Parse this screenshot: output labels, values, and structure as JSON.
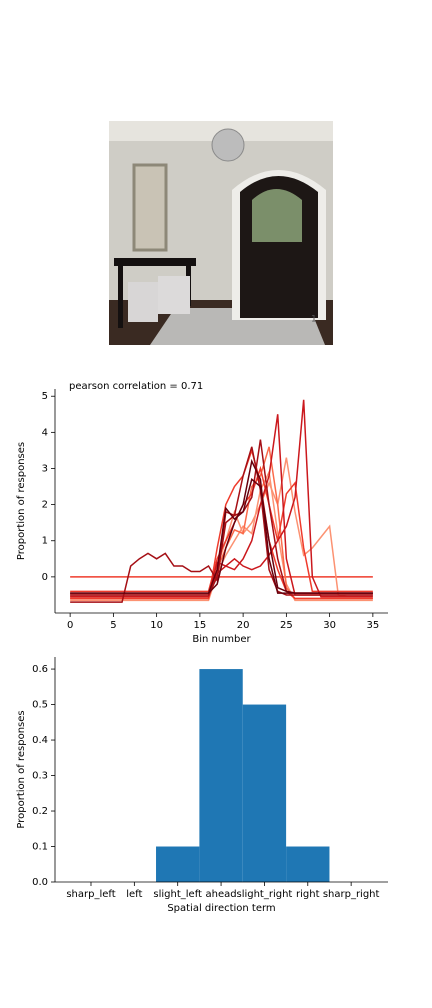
{
  "image_label": "1",
  "chart_data": [
    {
      "type": "line",
      "annotation": "pearson correlation = 0.71",
      "xlabel": "Bin number",
      "ylabel": "Proportion of responses",
      "x": [
        0,
        1,
        2,
        3,
        4,
        5,
        6,
        7,
        8,
        9,
        10,
        11,
        12,
        13,
        14,
        15,
        16,
        17,
        18,
        19,
        20,
        21,
        22,
        23,
        24,
        25,
        26,
        27,
        28,
        29,
        30,
        31,
        32,
        33,
        34,
        35
      ],
      "xlim": [
        -1.75,
        36.75
      ],
      "xticks": [
        0,
        5,
        10,
        15,
        20,
        25,
        30,
        35
      ],
      "ylim": [
        -1,
        5.2
      ],
      "yticks": [
        0,
        1,
        2,
        3,
        4,
        5
      ],
      "series": [
        {
          "color": "#ef3b2c",
          "values": [
            0,
            0,
            0,
            0,
            0,
            0,
            0,
            0,
            0,
            0,
            0,
            0,
            0,
            0,
            0,
            0,
            0,
            0,
            0,
            0,
            0,
            0,
            0,
            0,
            0,
            0,
            0,
            0,
            0,
            0,
            0,
            0,
            0,
            0,
            0,
            0
          ]
        },
        {
          "color": "#fc9272",
          "values": [
            -0.55,
            -0.55,
            -0.55,
            -0.55,
            -0.55,
            -0.55,
            -0.55,
            -0.55,
            -0.55,
            -0.55,
            -0.55,
            -0.55,
            -0.55,
            -0.55,
            -0.55,
            -0.55,
            -0.55,
            0.3,
            1.0,
            1.8,
            1.2,
            1.5,
            2.0,
            2.6,
            2.0,
            3.3,
            1.8,
            0.6,
            0.8,
            1.1,
            1.4,
            -0.5,
            -0.55,
            -0.55,
            -0.55,
            -0.55
          ]
        },
        {
          "color": "#fc9272",
          "values": [
            -0.65,
            -0.65,
            -0.65,
            -0.65,
            -0.65,
            -0.65,
            -0.65,
            -0.65,
            -0.65,
            -0.65,
            -0.65,
            -0.65,
            -0.65,
            -0.65,
            -0.65,
            -0.65,
            -0.65,
            0.1,
            0.6,
            1.0,
            1.4,
            1.2,
            2.4,
            2.9,
            1.2,
            -0.2,
            -0.65,
            -0.65,
            -0.65,
            -0.65,
            -0.65,
            -0.65,
            -0.65,
            -0.65,
            -0.65,
            -0.65
          ]
        },
        {
          "color": "#fb6a4a",
          "values": [
            -0.6,
            -0.6,
            -0.6,
            -0.6,
            -0.6,
            -0.6,
            -0.6,
            -0.6,
            -0.6,
            -0.6,
            -0.6,
            -0.6,
            -0.6,
            -0.6,
            -0.6,
            -0.6,
            -0.6,
            0.2,
            0.8,
            1.3,
            1.2,
            2.5,
            2.8,
            3.6,
            2.0,
            -0.3,
            -0.6,
            -0.6,
            -0.6,
            -0.6,
            -0.6,
            -0.6,
            -0.6,
            -0.6,
            -0.6,
            -0.6
          ]
        },
        {
          "color": "#ef3b2c",
          "values": [
            -0.4,
            -0.4,
            -0.4,
            -0.4,
            -0.4,
            -0.4,
            -0.4,
            -0.4,
            -0.4,
            -0.4,
            -0.4,
            -0.4,
            -0.4,
            -0.4,
            -0.4,
            -0.4,
            -0.4,
            0.5,
            1.0,
            1.5,
            2.0,
            2.3,
            3.0,
            2.0,
            1.0,
            2.3,
            2.6,
            0.8,
            -0.4,
            -0.4,
            -0.4,
            -0.4,
            -0.4,
            -0.4,
            -0.4,
            -0.4
          ]
        },
        {
          "color": "#ef3b2c",
          "values": [
            -0.6,
            -0.6,
            -0.6,
            -0.6,
            -0.6,
            -0.6,
            -0.6,
            -0.6,
            -0.6,
            -0.6,
            -0.6,
            -0.6,
            -0.6,
            -0.6,
            -0.6,
            -0.6,
            -0.6,
            0.8,
            2.0,
            2.5,
            2.8,
            3.5,
            2.6,
            1.0,
            0.2,
            -0.4,
            -0.6,
            -0.6,
            -0.6,
            -0.6,
            -0.6,
            -0.6,
            -0.6,
            -0.6,
            -0.6,
            -0.6
          ]
        },
        {
          "color": "#cb181d",
          "values": [
            -0.5,
            -0.5,
            -0.5,
            -0.5,
            -0.5,
            -0.5,
            -0.5,
            -0.5,
            -0.5,
            -0.5,
            -0.5,
            -0.5,
            -0.5,
            -0.5,
            -0.5,
            -0.5,
            -0.5,
            0.4,
            0.3,
            0.2,
            0.5,
            1.0,
            2.0,
            2.8,
            4.5,
            0.5,
            -0.5,
            -0.5,
            -0.5,
            -0.5,
            -0.5,
            -0.5,
            -0.5,
            -0.5,
            -0.5,
            -0.5
          ]
        },
        {
          "color": "#cb181d",
          "values": [
            -0.55,
            -0.55,
            -0.55,
            -0.55,
            -0.55,
            -0.55,
            -0.55,
            -0.55,
            -0.55,
            -0.55,
            -0.55,
            -0.55,
            -0.55,
            -0.55,
            -0.55,
            -0.55,
            -0.55,
            0.1,
            0.3,
            0.5,
            0.3,
            0.2,
            0.3,
            0.6,
            1.0,
            1.4,
            2.2,
            4.9,
            0.0,
            -0.55,
            -0.55,
            -0.55,
            -0.55,
            -0.55,
            -0.55,
            -0.55
          ]
        },
        {
          "color": "#a50f15",
          "values": [
            -0.5,
            -0.5,
            -0.5,
            -0.5,
            -0.5,
            -0.5,
            -0.5,
            -0.5,
            -0.5,
            -0.5,
            -0.5,
            -0.5,
            -0.5,
            -0.5,
            -0.5,
            -0.5,
            -0.5,
            0.0,
            1.5,
            1.7,
            2.8,
            3.6,
            2.4,
            0.2,
            -0.4,
            -0.5,
            -0.5,
            -0.5,
            -0.5,
            -0.5,
            -0.5,
            -0.5,
            -0.5,
            -0.5,
            -0.5,
            -0.5
          ]
        },
        {
          "color": "#a50f15",
          "values": [
            -0.7,
            -0.7,
            -0.7,
            -0.7,
            -0.7,
            -0.7,
            -0.7,
            0.3,
            0.5,
            0.65,
            0.5,
            0.65,
            0.3,
            0.3,
            0.15,
            0.15,
            0.3,
            -0.1,
            1.8,
            1.7,
            1.8,
            2.2,
            3.8,
            2.0,
            0.5,
            -0.4,
            -0.45,
            -0.45,
            -0.45,
            -0.45,
            -0.45,
            -0.45,
            -0.45,
            -0.45,
            -0.45,
            -0.45
          ]
        },
        {
          "color": "#67000d",
          "values": [
            -0.45,
            -0.45,
            -0.45,
            -0.45,
            -0.45,
            -0.45,
            -0.45,
            -0.45,
            -0.45,
            -0.45,
            -0.45,
            -0.45,
            -0.45,
            -0.45,
            -0.45,
            -0.45,
            -0.45,
            0.2,
            1.9,
            1.6,
            1.8,
            2.7,
            2.5,
            1.0,
            -0.3,
            -0.4,
            -0.45,
            -0.45,
            -0.45,
            -0.45,
            -0.45,
            -0.45,
            -0.45,
            -0.45,
            -0.45,
            -0.45
          ]
        },
        {
          "color": "#67000d",
          "values": [
            -0.45,
            -0.45,
            -0.45,
            -0.45,
            -0.45,
            -0.45,
            -0.45,
            -0.45,
            -0.45,
            -0.45,
            -0.45,
            -0.45,
            -0.45,
            -0.45,
            -0.45,
            -0.45,
            -0.45,
            -0.2,
            0.8,
            1.5,
            2.0,
            3.2,
            2.7,
            0.5,
            -0.45,
            -0.45,
            -0.45,
            -0.45,
            -0.45,
            -0.45,
            -0.45,
            -0.45,
            -0.45,
            -0.45,
            -0.45,
            -0.45
          ]
        }
      ]
    },
    {
      "type": "bar",
      "xlabel": "Spatial direction term",
      "ylabel": "Proportion of responses",
      "categories": [
        "sharp_left",
        "left",
        "slight_left",
        "ahead",
        "slight_right",
        "right",
        "sharp_right"
      ],
      "values": [
        0,
        0,
        0.1,
        0.6,
        0.5,
        0.1,
        0
      ],
      "color": "#1f77b4",
      "ylim": [
        0,
        0.634
      ],
      "yticks": [
        {
          "value": 0,
          "label": "0.0"
        },
        0.1,
        0.2,
        0.3,
        0.4,
        0.5,
        0.6
      ]
    }
  ]
}
